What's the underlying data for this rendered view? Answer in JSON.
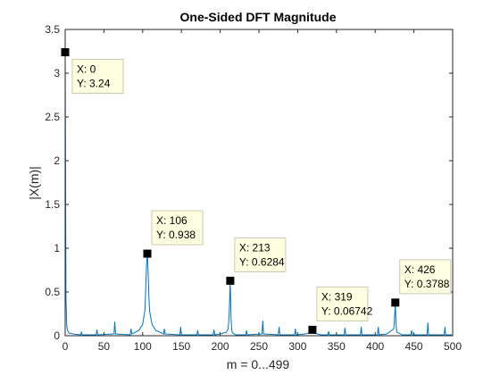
{
  "chart_data": {
    "type": "line",
    "title": "One-Sided DFT Magnitude",
    "xlabel": "m = 0...499",
    "ylabel": "|X(m)|",
    "xlim": [
      0,
      500
    ],
    "ylim": [
      0,
      3.5
    ],
    "xticks": [
      0,
      50,
      100,
      150,
      200,
      250,
      300,
      350,
      400,
      450,
      500
    ],
    "yticks": [
      0,
      0.5,
      1,
      1.5,
      2,
      2.5,
      3,
      3.5
    ],
    "grid": false,
    "line_color": "#0072BD",
    "series": [
      {
        "x": [
          0,
          1,
          2,
          3,
          5,
          10,
          20,
          21,
          22,
          40,
          41,
          42,
          63,
          64,
          65,
          84,
          85,
          86,
          95,
          100,
          103,
          104,
          105,
          106,
          107,
          108,
          109,
          112,
          117,
          125,
          127,
          128,
          129,
          148,
          149,
          150,
          170,
          171,
          172,
          191,
          192,
          193,
          200,
          208,
          210,
          211,
          212,
          213,
          214,
          215,
          216,
          220,
          233,
          234,
          235,
          254,
          255,
          256,
          275,
          276,
          277,
          296,
          297,
          298,
          310,
          317,
          318,
          319,
          320,
          321,
          330,
          339,
          340,
          341,
          360,
          361,
          362,
          381,
          382,
          383,
          403,
          404,
          405,
          415,
          424,
          425,
          426,
          427,
          428,
          435,
          446,
          447,
          448,
          467,
          468,
          469,
          489,
          490,
          491,
          499
        ],
        "y": [
          3.24,
          0.45,
          0.12,
          0.06,
          0.03,
          0.02,
          0.01,
          0.04,
          0.01,
          0.01,
          0.07,
          0.01,
          0.02,
          0.16,
          0.02,
          0.01,
          0.08,
          0.02,
          0.06,
          0.13,
          0.3,
          0.55,
          0.82,
          0.938,
          0.74,
          0.45,
          0.28,
          0.13,
          0.06,
          0.03,
          0.02,
          0.08,
          0.02,
          0.01,
          0.1,
          0.01,
          0.01,
          0.06,
          0.01,
          0.01,
          0.07,
          0.01,
          0.02,
          0.04,
          0.07,
          0.15,
          0.35,
          0.6284,
          0.2,
          0.06,
          0.03,
          0.01,
          0.01,
          0.06,
          0.01,
          0.02,
          0.17,
          0.02,
          0.01,
          0.1,
          0.01,
          0.01,
          0.08,
          0.01,
          0.02,
          0.04,
          0.06,
          0.06742,
          0.05,
          0.03,
          0.01,
          0.01,
          0.05,
          0.01,
          0.01,
          0.09,
          0.01,
          0.01,
          0.1,
          0.01,
          0.01,
          0.1,
          0.01,
          0.02,
          0.08,
          0.2,
          0.3788,
          0.12,
          0.04,
          0.01,
          0.01,
          0.06,
          0.01,
          0.01,
          0.15,
          0.01,
          0.01,
          0.1,
          0.01,
          0.01
        ]
      }
    ],
    "datatips": [
      {
        "x": 0,
        "y": 3.24,
        "label_x": "X: 0",
        "label_y": "Y: 3.24",
        "placement": "below-right"
      },
      {
        "x": 106,
        "y": 0.938,
        "label_x": "X: 106",
        "label_y": "Y: 0.938",
        "placement": "above-right"
      },
      {
        "x": 213,
        "y": 0.6284,
        "label_x": "X: 213",
        "label_y": "Y: 0.6284",
        "placement": "above-right"
      },
      {
        "x": 319,
        "y": 0.06742,
        "label_x": "X: 319",
        "label_y": "Y: 0.06742",
        "placement": "above-right"
      },
      {
        "x": 426,
        "y": 0.3788,
        "label_x": "X: 426",
        "label_y": "Y: 0.3788",
        "placement": "above-right"
      }
    ]
  }
}
